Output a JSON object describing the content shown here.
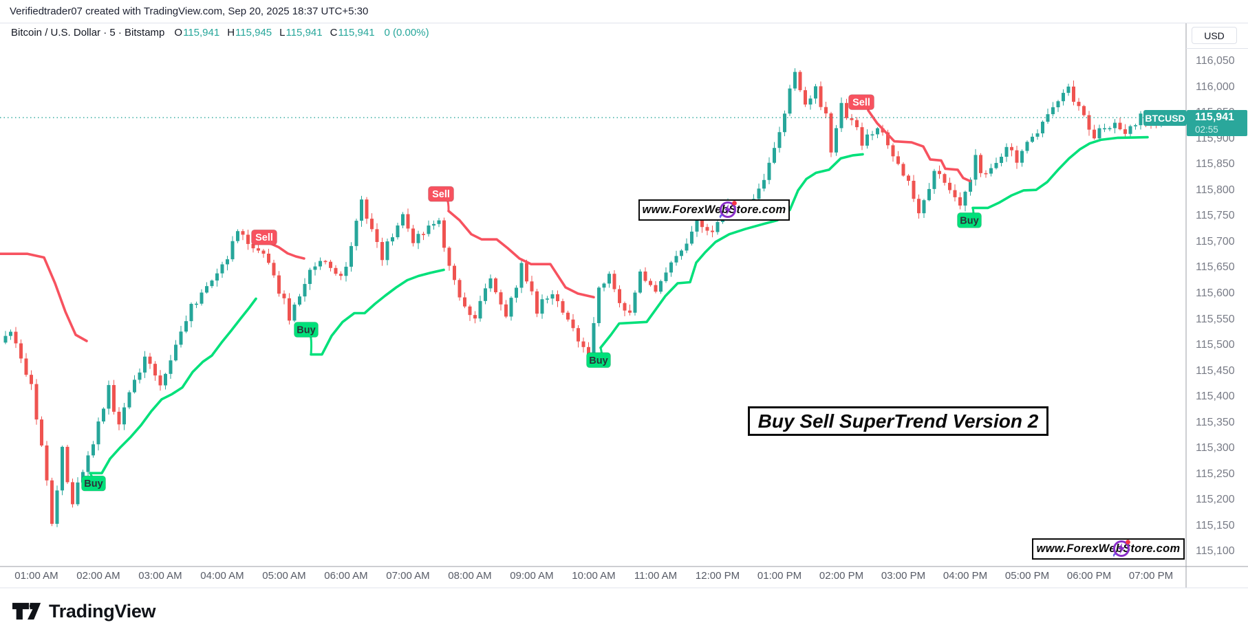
{
  "attribution": "Verifiedtrader07 created with TradingView.com, Sep 20, 2025 18:37 UTC+5:30",
  "header": {
    "title": "Bitcoin / U.S. Dollar · 5 · Bitstamp",
    "ohlc": [
      {
        "label": "O",
        "value": "115,941"
      },
      {
        "label": "H",
        "value": "115,945"
      },
      {
        "label": "L",
        "value": "115,941"
      },
      {
        "label": "C",
        "value": "115,941"
      }
    ],
    "change": "0 (0.00%)"
  },
  "price_axis": {
    "currency": "USD",
    "tick_values": [
      116050,
      116000,
      115950,
      115900,
      115850,
      115800,
      115750,
      115700,
      115650,
      115600,
      115550,
      115500,
      115450,
      115400,
      115350,
      115300,
      115250,
      115200,
      115150,
      115100
    ]
  },
  "time_axis": {
    "labels": [
      "01:00 AM",
      "02:00 AM",
      "03:00 AM",
      "04:00 AM",
      "05:00 AM",
      "06:00 AM",
      "07:00 AM",
      "08:00 AM",
      "09:00 AM",
      "10:00 AM",
      "11:00 AM",
      "12:00 PM",
      "01:00 PM",
      "02:00 PM",
      "03:00 PM",
      "04:00 PM",
      "05:00 PM",
      "06:00 PM",
      "07:00 PM"
    ]
  },
  "price_tag": {
    "symbol": "BTCUSD",
    "price": "115,941",
    "countdown": "02:55"
  },
  "watermarks": {
    "center": "www.ForexWebStore.com",
    "bottom_right": "www.ForexWebStore.com"
  },
  "title_box": "Buy Sell SuperTrend Version 2",
  "brand": {
    "name": "TradingView"
  },
  "chart_data": {
    "type": "candlestick",
    "symbol": "Bitcoin / U.S. Dollar",
    "ticker": "BTCUSD",
    "exchange": "Bitstamp",
    "interval_minutes": 5,
    "indicator": "Buy Sell SuperTrend Version 2",
    "last": {
      "open": 115941,
      "high": 115945,
      "low": 115941,
      "close": 115941,
      "change": "0 (0.00%)"
    },
    "last_price": 115941,
    "ylim": [
      115071,
      116125
    ],
    "y_ticks": [
      116050,
      116000,
      115950,
      115900,
      115850,
      115800,
      115750,
      115700,
      115650,
      115600,
      115550,
      115500,
      115450,
      115400,
      115350,
      115300,
      115250,
      115200,
      115150,
      115100
    ],
    "x_labels": [
      "01:00 AM",
      "02:00 AM",
      "03:00 AM",
      "04:00 AM",
      "05:00 AM",
      "06:00 AM",
      "07:00 AM",
      "08:00 AM",
      "09:00 AM",
      "10:00 AM",
      "11:00 AM",
      "12:00 PM",
      "01:00 PM",
      "02:00 PM",
      "03:00 PM",
      "04:00 PM",
      "05:00 PM",
      "06:00 PM",
      "07:00 PM"
    ],
    "time_start": "12:30 AM",
    "time_end": "07:20 PM",
    "grid": false,
    "price_path": [
      [
        0,
        115505
      ],
      [
        2,
        115525
      ],
      [
        4,
        115480
      ],
      [
        6,
        115420
      ],
      [
        8,
        115310
      ],
      [
        10,
        115160
      ],
      [
        12,
        115290
      ],
      [
        14,
        115195
      ],
      [
        16,
        115250
      ],
      [
        18,
        115310
      ],
      [
        21,
        115410
      ],
      [
        23,
        115355
      ],
      [
        26,
        115430
      ],
      [
        28,
        115480
      ],
      [
        31,
        115425
      ],
      [
        34,
        115495
      ],
      [
        37,
        115570
      ],
      [
        40,
        115610
      ],
      [
        43,
        115650
      ],
      [
        46,
        115715
      ],
      [
        48,
        115700
      ],
      [
        51,
        115680
      ],
      [
        54,
        115610
      ],
      [
        56,
        115560
      ],
      [
        58,
        115590
      ],
      [
        60,
        115640
      ],
      [
        63,
        115665
      ],
      [
        66,
        115630
      ],
      [
        68,
        115690
      ],
      [
        70,
        115775
      ],
      [
        72,
        115730
      ],
      [
        74,
        115670
      ],
      [
        76,
        115710
      ],
      [
        78,
        115755
      ],
      [
        80,
        115700
      ],
      [
        82,
        115720
      ],
      [
        85,
        115740
      ],
      [
        87,
        115660
      ],
      [
        89,
        115590
      ],
      [
        92,
        115550
      ],
      [
        95,
        115630
      ],
      [
        98,
        115555
      ],
      [
        101,
        115645
      ],
      [
        104,
        115575
      ],
      [
        107,
        115600
      ],
      [
        111,
        115530
      ],
      [
        114,
        115485
      ],
      [
        116,
        115600
      ],
      [
        118,
        115640
      ],
      [
        120,
        115580
      ],
      [
        122,
        115565
      ],
      [
        124,
        115640
      ],
      [
        127,
        115605
      ],
      [
        130,
        115660
      ],
      [
        132,
        115680
      ],
      [
        135,
        115745
      ],
      [
        138,
        115715
      ],
      [
        141,
        115770
      ],
      [
        144,
        115745
      ],
      [
        147,
        115800
      ],
      [
        150,
        115880
      ],
      [
        152,
        115940
      ],
      [
        154,
        116030
      ],
      [
        156,
        115965
      ],
      [
        158,
        116000
      ],
      [
        160,
        115945
      ],
      [
        161,
        115890
      ],
      [
        163,
        115960
      ],
      [
        165,
        115940
      ],
      [
        167,
        115895
      ],
      [
        170,
        115925
      ],
      [
        173,
        115870
      ],
      [
        175,
        115835
      ],
      [
        177,
        115790
      ],
      [
        178,
        115760
      ],
      [
        180,
        115800
      ],
      [
        181,
        115845
      ],
      [
        183,
        115820
      ],
      [
        185,
        115790
      ],
      [
        186,
        115775
      ],
      [
        188,
        115820
      ],
      [
        189,
        115855
      ],
      [
        191,
        115830
      ],
      [
        193,
        115855
      ],
      [
        195,
        115885
      ],
      [
        197,
        115860
      ],
      [
        200,
        115905
      ],
      [
        202,
        115930
      ],
      [
        204,
        115960
      ],
      [
        205,
        115975
      ],
      [
        207,
        115995
      ],
      [
        209,
        115960
      ],
      [
        211,
        115920
      ],
      [
        212,
        115905
      ],
      [
        214,
        115920
      ],
      [
        216,
        115930
      ],
      [
        218,
        115912
      ],
      [
        220,
        115928
      ],
      [
        221,
        115942
      ],
      [
        223,
        115925
      ],
      [
        225,
        115935
      ],
      [
        226,
        115941
      ]
    ],
    "supertrend": [
      {
        "side": "sell",
        "points": [
          [
            0,
            115677
          ],
          [
            40,
            115677
          ],
          [
            64,
            115670
          ],
          [
            80,
            115620
          ],
          [
            95,
            115565
          ],
          [
            110,
            115520
          ],
          [
            126,
            115508
          ]
        ]
      },
      {
        "side": "buy",
        "points": [
          [
            131,
            115252
          ],
          [
            148,
            115252
          ],
          [
            160,
            115280
          ],
          [
            175,
            115302
          ],
          [
            190,
            115322
          ],
          [
            205,
            115345
          ],
          [
            220,
            115372
          ],
          [
            235,
            115395
          ],
          [
            250,
            115405
          ],
          [
            265,
            115418
          ],
          [
            280,
            115448
          ],
          [
            295,
            115468
          ],
          [
            308,
            115480
          ],
          [
            322,
            115505
          ],
          [
            336,
            115528
          ],
          [
            350,
            115552
          ],
          [
            362,
            115572
          ],
          [
            372,
            115590
          ]
        ]
      },
      {
        "side": "sell",
        "points": [
          [
            383,
            115700
          ],
          [
            395,
            115696
          ],
          [
            405,
            115690
          ],
          [
            418,
            115678
          ],
          [
            430,
            115672
          ],
          [
            442,
            115668
          ]
        ]
      },
      {
        "side": "buy",
        "points": [
          [
            452,
            115482
          ],
          [
            468,
            115482
          ],
          [
            482,
            115518
          ],
          [
            498,
            115545
          ],
          [
            515,
            115562
          ],
          [
            530,
            115562
          ],
          [
            545,
            115580
          ],
          [
            560,
            115596
          ],
          [
            576,
            115612
          ],
          [
            592,
            115626
          ],
          [
            608,
            115634
          ],
          [
            625,
            115640
          ],
          [
            645,
            115646
          ]
        ]
      },
      {
        "side": "sell",
        "points": [
          [
            652,
            115760
          ],
          [
            668,
            115742
          ],
          [
            685,
            115715
          ],
          [
            700,
            115705
          ],
          [
            722,
            115705
          ],
          [
            738,
            115688
          ],
          [
            755,
            115668
          ],
          [
            772,
            115657
          ],
          [
            800,
            115657
          ],
          [
            822,
            115612
          ],
          [
            840,
            115600
          ],
          [
            863,
            115593
          ]
        ]
      },
      {
        "side": "buy",
        "points": [
          [
            873,
            115495
          ],
          [
            888,
            115520
          ],
          [
            900,
            115542
          ],
          [
            940,
            115545
          ],
          [
            967,
            115595
          ],
          [
            985,
            115620
          ],
          [
            1003,
            115622
          ],
          [
            1012,
            115660
          ],
          [
            1025,
            115680
          ],
          [
            1040,
            115700
          ],
          [
            1060,
            115715
          ],
          [
            1083,
            115725
          ],
          [
            1110,
            115735
          ],
          [
            1130,
            115742
          ],
          [
            1148,
            115762
          ],
          [
            1160,
            115800
          ],
          [
            1172,
            115822
          ],
          [
            1186,
            115834
          ],
          [
            1205,
            115840
          ],
          [
            1222,
            115862
          ],
          [
            1240,
            115868
          ],
          [
            1254,
            115870
          ]
        ]
      },
      {
        "side": "sell",
        "points": [
          [
            1262,
            115955
          ],
          [
            1275,
            115930
          ],
          [
            1288,
            115912
          ],
          [
            1300,
            115895
          ],
          [
            1325,
            115893
          ],
          [
            1342,
            115885
          ],
          [
            1352,
            115860
          ],
          [
            1368,
            115858
          ],
          [
            1374,
            115842
          ],
          [
            1392,
            115840
          ],
          [
            1400,
            115824
          ],
          [
            1410,
            115818
          ]
        ]
      },
      {
        "side": "buy",
        "points": [
          [
            1414,
            115766
          ],
          [
            1436,
            115766
          ],
          [
            1452,
            115776
          ],
          [
            1470,
            115790
          ],
          [
            1488,
            115800
          ],
          [
            1506,
            115801
          ],
          [
            1522,
            115816
          ],
          [
            1538,
            115840
          ],
          [
            1554,
            115862
          ],
          [
            1570,
            115880
          ],
          [
            1584,
            115891
          ],
          [
            1600,
            115898
          ],
          [
            1625,
            115902
          ],
          [
            1668,
            115903
          ]
        ]
      }
    ],
    "signals": [
      {
        "side": "buy",
        "label": "Buy",
        "x": 136,
        "price": 115232,
        "anchor": [
          131,
          115252
        ],
        "time": "01:55 AM"
      },
      {
        "side": "sell",
        "label": "Sell",
        "x": 384,
        "price": 115709,
        "anchor": [
          383,
          115700
        ],
        "time": "04:40 AM"
      },
      {
        "side": "buy",
        "label": "Buy",
        "x": 445,
        "price": 115530,
        "anchor": [
          452,
          115482
        ],
        "time": "05:20 AM"
      },
      {
        "side": "sell",
        "label": "Sell",
        "x": 641,
        "price": 115793,
        "anchor": [
          652,
          115760
        ],
        "time": "07:30 AM"
      },
      {
        "side": "buy",
        "label": "Buy",
        "x": 870,
        "price": 115471,
        "anchor": [
          873,
          115495
        ],
        "time": "10:05 AM"
      },
      {
        "side": "sell",
        "label": "Sell",
        "x": 1252,
        "price": 115971,
        "anchor": [
          1262,
          115955
        ],
        "time": "02:20 PM"
      },
      {
        "side": "buy",
        "label": "Buy",
        "x": 1409,
        "price": 115742,
        "anchor": [
          1414,
          115766
        ],
        "time": "04:05 PM"
      }
    ],
    "colors": {
      "up_candle": "#26a69a",
      "down_candle": "#ef5350",
      "supertrend_buy": "#00e07a",
      "supertrend_sell": "#f7525f",
      "buy_label_text": "#2b3139",
      "sell_label_text": "#ffffff",
      "last_price_line": "#26a69a",
      "axis_text": "#787b86"
    }
  }
}
